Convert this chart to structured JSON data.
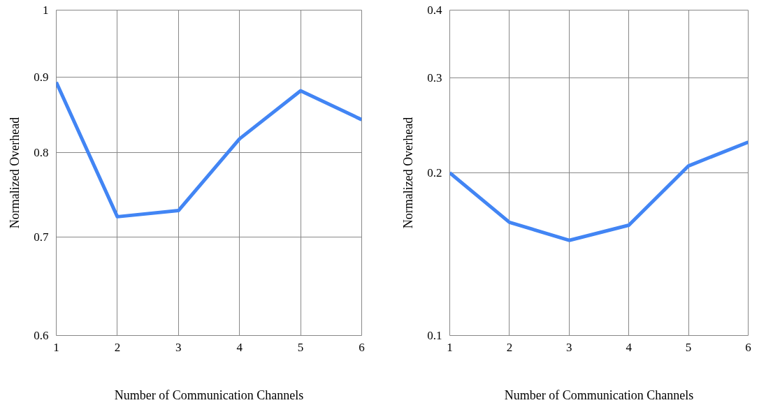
{
  "chart_data": [
    {
      "type": "line",
      "xlabel": "Number of Communication Channels",
      "ylabel": "Normalized Overhead",
      "x": [
        1,
        2,
        3,
        4,
        5,
        6
      ],
      "series": [
        {
          "color": "#4285f4",
          "values": [
            0.893,
            0.723,
            0.73,
            0.817,
            0.881,
            0.842
          ]
        }
      ],
      "xlim": [
        1,
        6
      ],
      "xticks": [
        1,
        2,
        3,
        4,
        5,
        6
      ],
      "ylim": [
        0.6,
        1
      ],
      "yticks": [
        0.6,
        0.7,
        0.8,
        0.9,
        1
      ],
      "log": "y",
      "grid": true,
      "marker": "none",
      "line_style": "solid"
    },
    {
      "type": "line",
      "xlabel": "Number of Communication Channels",
      "ylabel": "Normalized Overhead",
      "x": [
        1,
        2,
        3,
        4,
        5,
        6
      ],
      "series": [
        {
          "color": "#4285f4",
          "values": [
            0.2,
            0.162,
            0.15,
            0.16,
            0.206,
            0.228
          ]
        }
      ],
      "xlim": [
        1,
        6
      ],
      "xticks": [
        1,
        2,
        3,
        4,
        5,
        6
      ],
      "ylim": [
        0.1,
        0.4
      ],
      "yticks": [
        0.1,
        0.2,
        0.3,
        0.4
      ],
      "log": "y",
      "grid": true,
      "marker": "none",
      "line_style": "solid"
    }
  ]
}
